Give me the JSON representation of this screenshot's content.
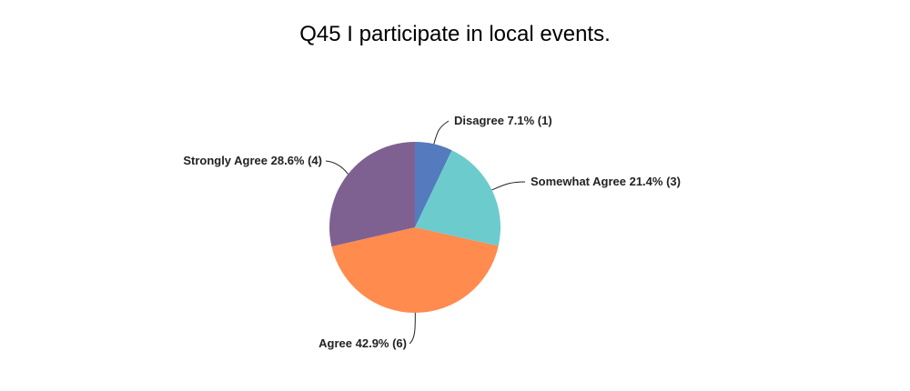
{
  "chart_data": {
    "type": "pie",
    "title": "Q45 I participate in local events.",
    "slices": [
      {
        "label": "Disagree",
        "percent": 7.1,
        "count": 1,
        "color": "#537bbd",
        "display": "Disagree 7.1% (1)"
      },
      {
        "label": "Somewhat Agree",
        "percent": 21.4,
        "count": 3,
        "color": "#6ccbcd",
        "display": "Somewhat Agree 21.4% (3)"
      },
      {
        "label": "Agree",
        "percent": 42.9,
        "count": 6,
        "color": "#ff8b4f",
        "display": "Agree 42.9% (6)"
      },
      {
        "label": "Strongly Agree",
        "percent": 28.6,
        "count": 4,
        "color": "#7f6191",
        "display": "Strongly Agree 28.6% (4)"
      }
    ]
  }
}
